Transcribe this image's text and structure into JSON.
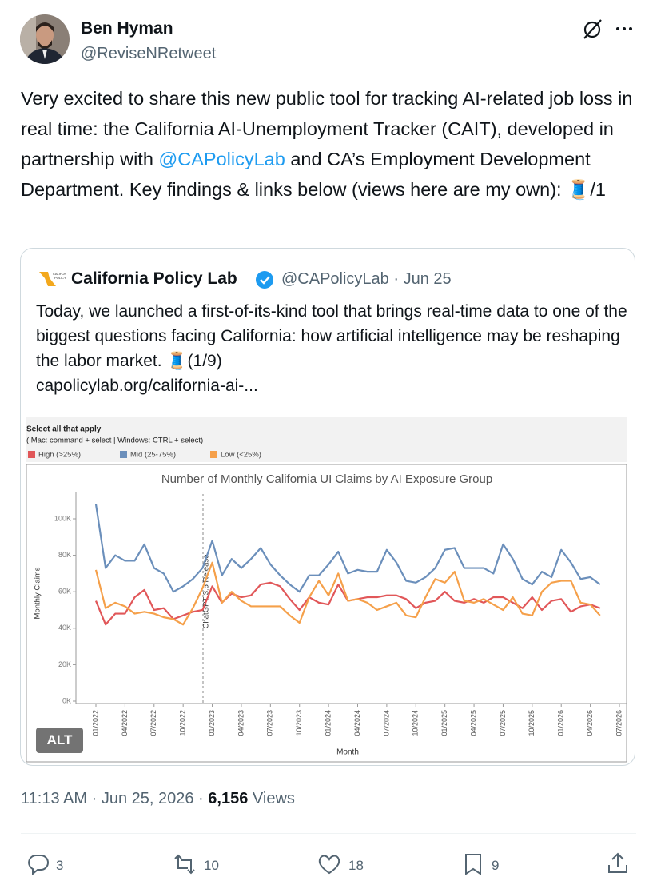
{
  "author": {
    "name": "Ben Hyman",
    "handle": "@ReviseNRetweet"
  },
  "tweet": {
    "text_before": "Very excited to share this new public tool for tracking AI-related job loss in real time: the California AI-Unemployment Tracker (CAIT), developed in partnership with ",
    "mention": "@CAPolicyLab",
    "text_after": " and CA’s Employment Development Department. Key findings & links below (views here are my own): 🧵/1"
  },
  "quoted_tweet": {
    "name": "California Policy Lab",
    "handle": "@CAPolicyLab",
    "separator": "·",
    "date": "Jun 25",
    "text": "Today, we launched a first-of-its-kind tool that brings real-time data to one of the biggest questions facing California: how artificial intelligence may be reshaping the labor market. 🧵(1/9)",
    "link": "capolicylab.org/california-ai-...",
    "image_badge": "ALT"
  },
  "chart_data": {
    "type": "line",
    "title": "Number of Monthly California UI Claims by AI Exposure Group",
    "filter_title": "Select all that apply",
    "filter_hint": "( Mac: command + select | Windows: CTRL + select)",
    "x_label": "Month",
    "y_label": "Monthly Claims",
    "annotation": "ChatGPT 3.5 Release",
    "categories": [
      "01/2022",
      null,
      null,
      "04/2022",
      null,
      null,
      "07/2022",
      null,
      null,
      "10/2022",
      null,
      null,
      "01/2023",
      null,
      null,
      "04/2023",
      null,
      null,
      "07/2023",
      null,
      null,
      "10/2023",
      null,
      null,
      "01/2024",
      null,
      null,
      "04/2024",
      null,
      null,
      "07/2024",
      null,
      null,
      "10/2024",
      null,
      null,
      "01/2025",
      null,
      null,
      "04/2025",
      null,
      null,
      "07/2025",
      null,
      null,
      "10/2025",
      null,
      null,
      "01/2026",
      null,
      null,
      "04/2026",
      null,
      null,
      "07/2026"
    ],
    "series": [
      {
        "name": "High (>25%)",
        "color": "#e15759",
        "values": [
          55000,
          42000,
          48000,
          48000,
          57000,
          61000,
          50000,
          51000,
          45000,
          47000,
          49000,
          50000,
          63000,
          54000,
          59000,
          57000,
          58000,
          64000,
          65000,
          63000,
          56000,
          50000,
          57000,
          54000,
          53000,
          64000,
          55000,
          56000,
          57000,
          57000,
          58000,
          58000,
          56000,
          51000,
          54000,
          55000,
          60000,
          55000,
          54000,
          56000,
          54000,
          57000,
          57000,
          54000,
          51000,
          57000,
          50000,
          55000,
          56000,
          49000,
          52000,
          53000,
          51000,
          null,
          null
        ]
      },
      {
        "name": "Mid (25-75%)",
        "color": "#6b8fbb",
        "values": [
          108000,
          73000,
          80000,
          77000,
          77000,
          86000,
          73000,
          70000,
          60000,
          63000,
          67000,
          73000,
          88000,
          69000,
          78000,
          73000,
          78000,
          84000,
          75000,
          69000,
          64000,
          60000,
          69000,
          69000,
          75000,
          82000,
          70000,
          72000,
          71000,
          71000,
          83000,
          76000,
          66000,
          65000,
          68000,
          73000,
          83000,
          84000,
          73000,
          73000,
          73000,
          70000,
          86000,
          78000,
          67000,
          64000,
          71000,
          68000,
          83000,
          76000,
          67000,
          68000,
          64000,
          null,
          null
        ]
      },
      {
        "name": "Low (<25%)",
        "color": "#f5a04a",
        "values": [
          72000,
          51000,
          54000,
          52000,
          48000,
          49000,
          48000,
          46000,
          45000,
          42000,
          51000,
          62000,
          76000,
          54000,
          60000,
          55000,
          52000,
          52000,
          52000,
          52000,
          47000,
          43000,
          57000,
          66000,
          58000,
          70000,
          55000,
          56000,
          54000,
          50000,
          52000,
          54000,
          47000,
          46000,
          57000,
          67000,
          65000,
          71000,
          55000,
          54000,
          56000,
          53000,
          50000,
          57000,
          48000,
          47000,
          60000,
          65000,
          66000,
          66000,
          54000,
          53000,
          47000,
          null,
          null
        ]
      }
    ],
    "ylim": [
      0,
      115000
    ],
    "yticks": [
      {
        "value": 0,
        "label": "0K"
      },
      {
        "value": 20000,
        "label": "20K"
      },
      {
        "value": 40000,
        "label": "40K"
      },
      {
        "value": 60000,
        "label": "60K"
      },
      {
        "value": 80000,
        "label": "80K"
      },
      {
        "value": 100000,
        "label": "100K"
      }
    ],
    "grid": false
  },
  "meta": {
    "time": "11:13 AM",
    "separator": "·",
    "date": "Jun 25, 2026",
    "views": "6,156",
    "views_label": "Views"
  },
  "actions": {
    "replies": 3,
    "reposts": 10,
    "likes": 18,
    "bookmarks": 9
  }
}
